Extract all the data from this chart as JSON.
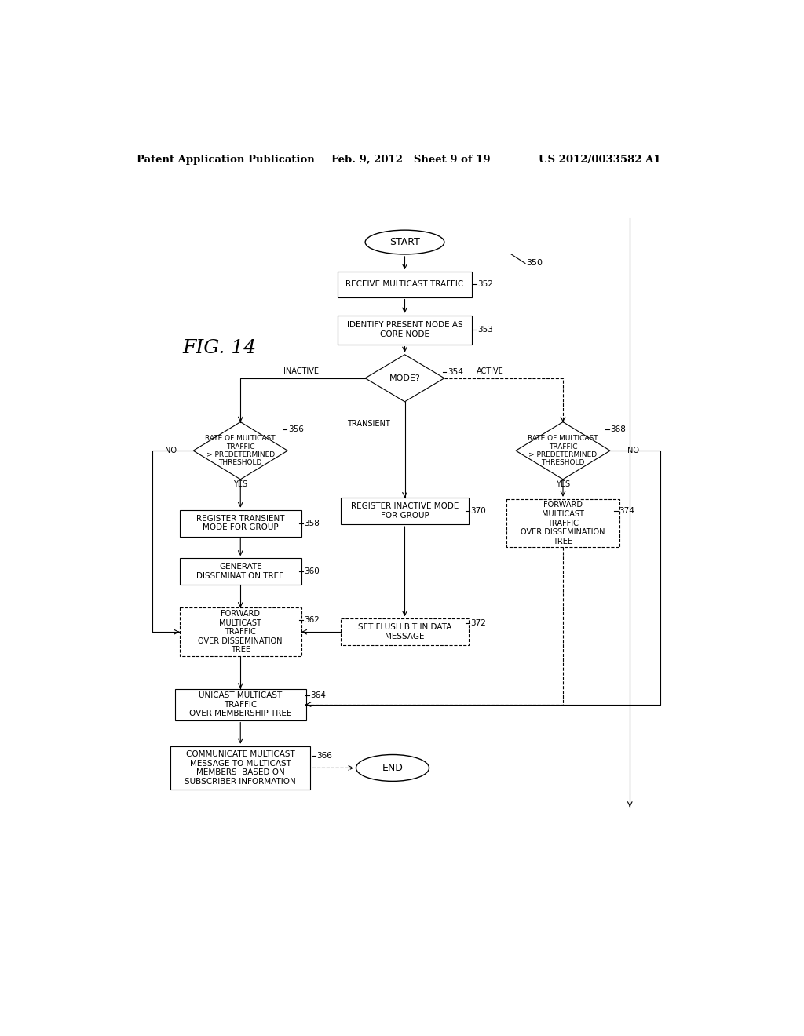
{
  "header_left": "Patent Application Publication",
  "header_mid": "Feb. 9, 2012   Sheet 9 of 19",
  "header_right": "US 2012/0033582 A1",
  "fig_label": "FIG. 14",
  "background": "#ffffff"
}
